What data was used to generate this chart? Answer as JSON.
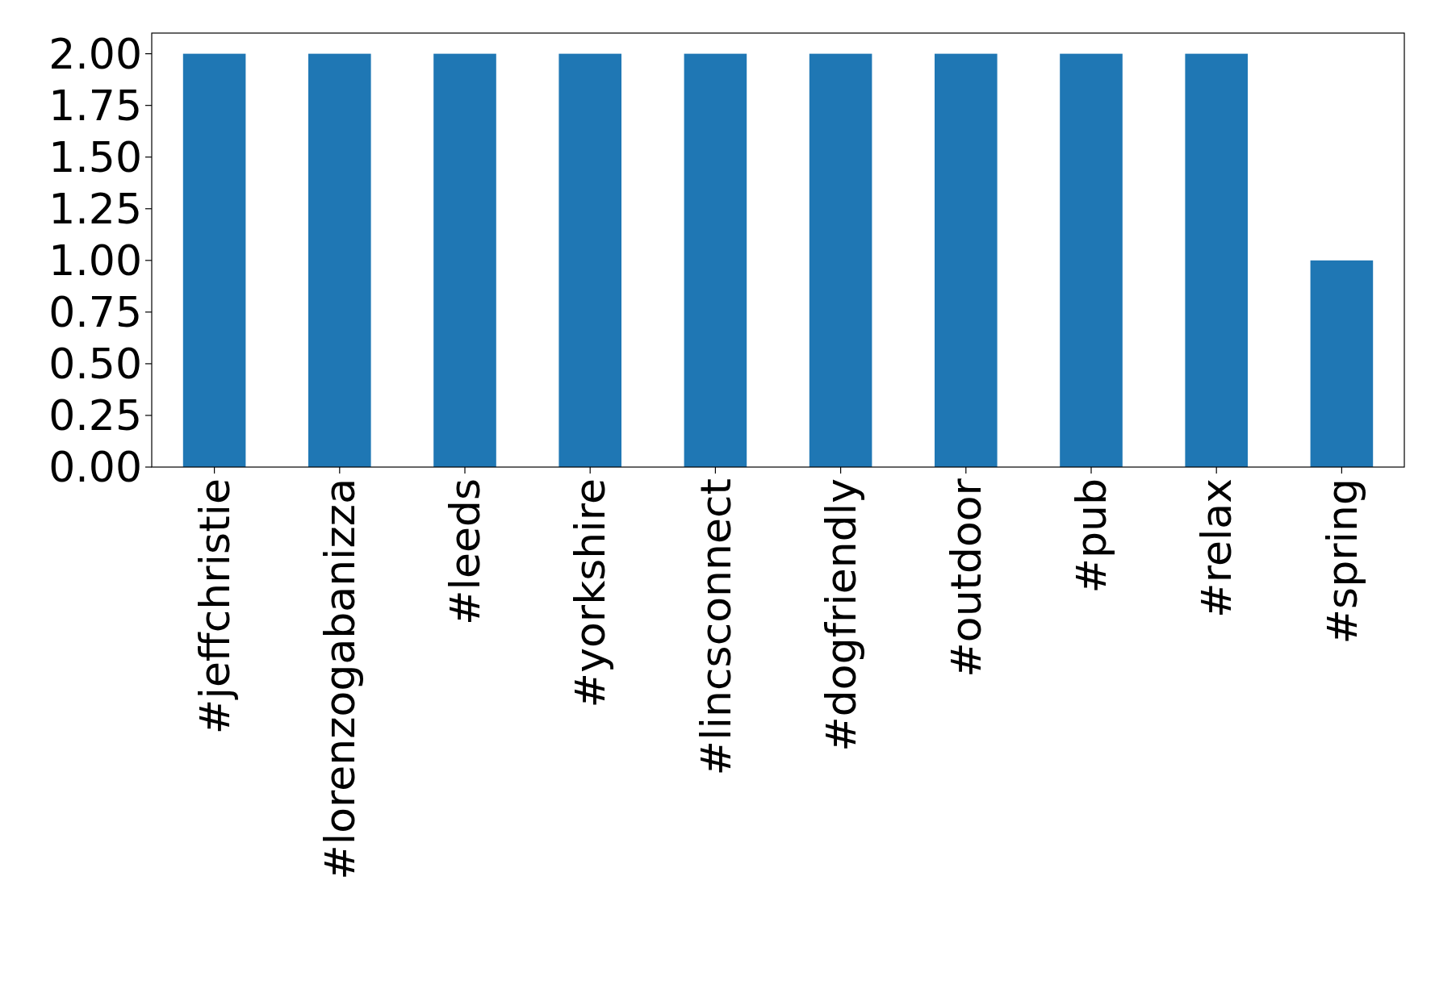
{
  "chart_data": {
    "type": "bar",
    "categories": [
      "#jeffchristie",
      "#lorenzogabanizza",
      "#leeds",
      "#yorkshire",
      "#lincsconnect",
      "#dogfriendly",
      "#outdoor",
      "#pub",
      "#relax",
      "#spring"
    ],
    "values": [
      2,
      2,
      2,
      2,
      2,
      2,
      2,
      2,
      2,
      1
    ],
    "color": "#1f77b4",
    "ylim": [
      0,
      2.1
    ],
    "yticks": [
      {
        "value": 0,
        "label": "0.00"
      },
      {
        "value": 0.25,
        "label": "0.25"
      },
      {
        "value": 0.5,
        "label": "0.50"
      },
      {
        "value": 0.75,
        "label": "0.75"
      },
      {
        "value": 1,
        "label": "1.00"
      },
      {
        "value": 1.25,
        "label": "1.25"
      },
      {
        "value": 1.5,
        "label": "1.50"
      },
      {
        "value": 1.75,
        "label": "1.75"
      },
      {
        "value": 2,
        "label": "2.00"
      }
    ]
  }
}
